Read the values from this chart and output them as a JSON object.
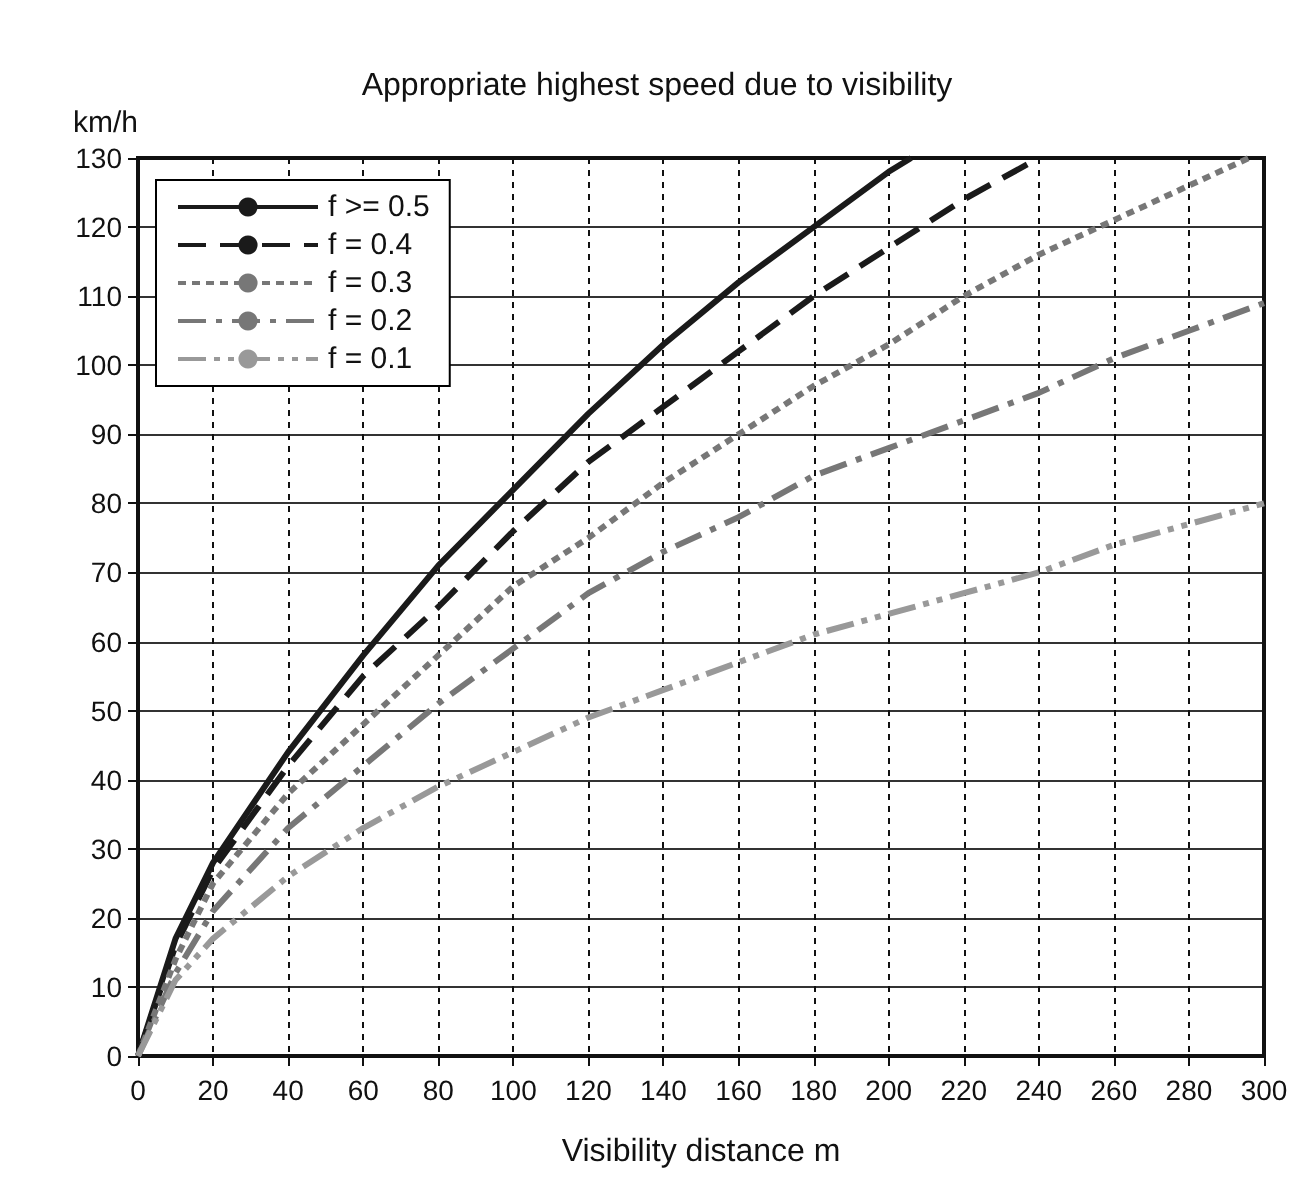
{
  "chart_data": {
    "type": "line",
    "title": "Appropriate highest speed due to visibility",
    "xlabel": "Visibility distance m",
    "ylabel": "km/h",
    "xlim": [
      0,
      300
    ],
    "xticks": [
      0,
      20,
      40,
      60,
      80,
      100,
      120,
      140,
      160,
      180,
      200,
      220,
      240,
      260,
      280,
      300
    ],
    "ylim": [
      0,
      130
    ],
    "yticks": [
      0,
      10,
      20,
      30,
      40,
      50,
      60,
      70,
      80,
      90,
      100,
      110,
      120,
      130
    ],
    "grid": true,
    "legend": "top left",
    "marker": "none",
    "series": [
      {
        "name": "f >= 0.5",
        "color": "#1a1a1a",
        "line_style": "solid",
        "x": [
          0,
          10,
          20,
          40,
          60,
          80,
          100,
          120,
          140,
          160,
          180,
          200,
          206
        ],
        "values": [
          0,
          17,
          28,
          44,
          58,
          71,
          82,
          93,
          103,
          112,
          120,
          128,
          130
        ]
      },
      {
        "name": "f = 0.4",
        "color": "#1a1a1a",
        "line_style": "dashed",
        "x": [
          0,
          10,
          20,
          40,
          60,
          80,
          100,
          120,
          140,
          160,
          180,
          200,
          220,
          240
        ],
        "values": [
          0,
          16,
          27,
          42,
          55,
          65,
          76,
          86,
          94,
          102,
          110,
          117,
          124,
          130
        ]
      },
      {
        "name": "f = 0.3",
        "color": "#777777",
        "line_style": "dotted",
        "x": [
          0,
          10,
          20,
          40,
          60,
          80,
          100,
          120,
          140,
          160,
          180,
          200,
          220,
          240,
          260,
          280,
          296
        ],
        "values": [
          0,
          14,
          25,
          38,
          48,
          58,
          68,
          75,
          83,
          90,
          97,
          103,
          110,
          116,
          121,
          126,
          130
        ]
      },
      {
        "name": "f = 0.2",
        "color": "#777777",
        "line_style": "dashdot",
        "x": [
          0,
          10,
          20,
          40,
          60,
          80,
          100,
          120,
          140,
          160,
          180,
          200,
          220,
          240,
          260,
          280,
          300
        ],
        "values": [
          0,
          12,
          21,
          33,
          42,
          51,
          59,
          67,
          73,
          78,
          84,
          88,
          92,
          96,
          101,
          105,
          109
        ]
      },
      {
        "name": "f = 0.1",
        "color": "#999999",
        "line_style": "dashdotdot",
        "x": [
          0,
          10,
          20,
          40,
          60,
          80,
          100,
          120,
          140,
          160,
          180,
          200,
          220,
          240,
          260,
          280,
          300
        ],
        "values": [
          0,
          11,
          17,
          26,
          33,
          39,
          44,
          49,
          53,
          57,
          61,
          64,
          67,
          70,
          74,
          77,
          80
        ]
      }
    ]
  }
}
